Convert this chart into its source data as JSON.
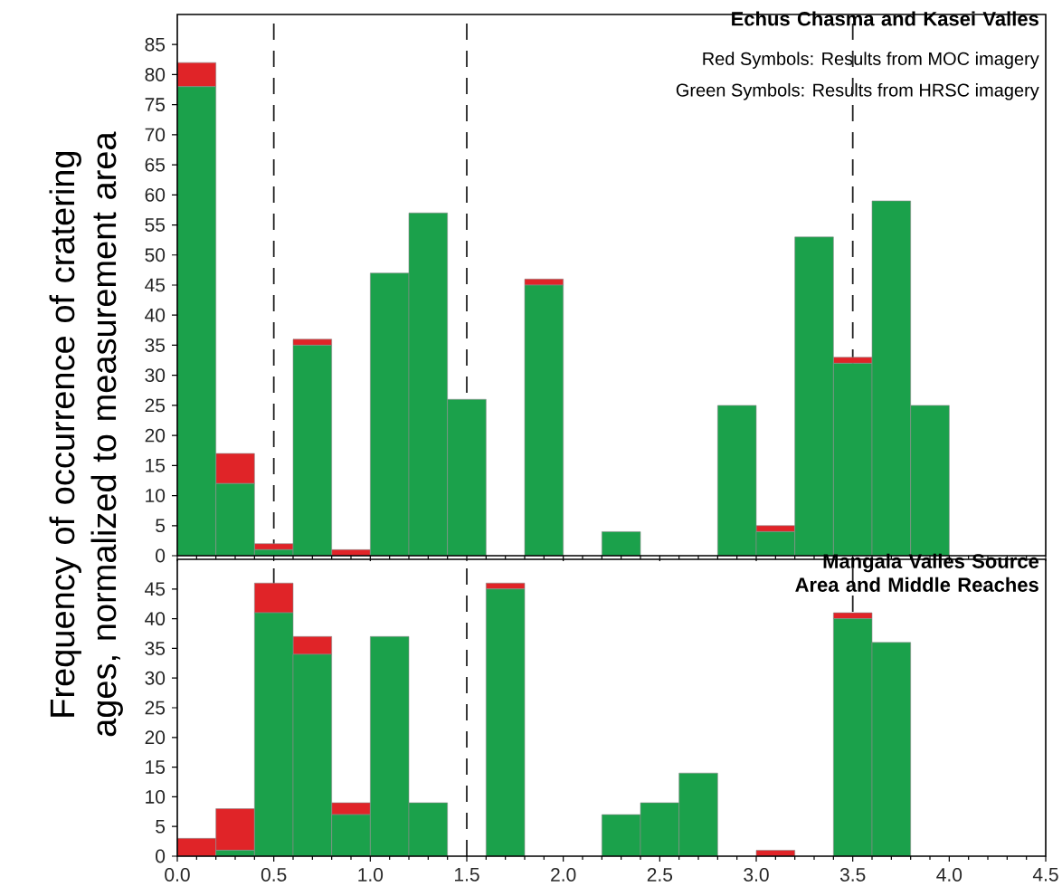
{
  "chart_data": [
    {
      "type": "bar",
      "title": "Echus Chasma and Kasei Valles",
      "ylabel": "Frequency of occurrence of cratering ages, normalized to measurement area",
      "annotations": [
        "Red Symbols: Results from MOC imagery",
        "Green Symbols: Results from HRSC imagery"
      ],
      "x": [
        0.1,
        0.3,
        0.5,
        0.7,
        0.9,
        1.1,
        1.3,
        1.5,
        1.7,
        1.9,
        2.1,
        2.3,
        2.5,
        2.7,
        2.9,
        3.1,
        3.3,
        3.5,
        3.7,
        3.9
      ],
      "stacked": true,
      "series": [
        {
          "color": "#1ba14b",
          "values": [
            78,
            12,
            1,
            35,
            0,
            47,
            57,
            26,
            0,
            45,
            0,
            4,
            0,
            0,
            25,
            4,
            53,
            32,
            59,
            25
          ]
        },
        {
          "color": "#e02428",
          "values": [
            4,
            5,
            1,
            1,
            1,
            0,
            0,
            0,
            0,
            1,
            0,
            0,
            0,
            0,
            0,
            1,
            0,
            1,
            0,
            0
          ]
        }
      ],
      "xlim": [
        0,
        4.5
      ],
      "ylim": [
        0,
        90
      ],
      "xticks": [
        {
          "value": 0,
          "label": null
        },
        {
          "value": 0.5,
          "label": null
        },
        {
          "value": 1,
          "label": null
        },
        {
          "value": 1.5,
          "label": null
        },
        {
          "value": 2,
          "label": null
        },
        {
          "value": 2.5,
          "label": null
        },
        {
          "value": 3,
          "label": null
        },
        {
          "value": 3.5,
          "label": null
        },
        {
          "value": 4,
          "label": null
        },
        {
          "value": 4.5,
          "label": null
        }
      ],
      "yticks": [
        0,
        5,
        10,
        15,
        20,
        25,
        30,
        35,
        40,
        45,
        50,
        55,
        60,
        65,
        70,
        75,
        80,
        85
      ],
      "tick_labels": "y",
      "grid": false,
      "ref_lines": [
        {
          "axis": "x",
          "value": 0.5,
          "color": "#222222",
          "line_style": "dashed"
        },
        {
          "axis": "x",
          "value": 1.5,
          "color": "#222222",
          "line_style": "dashed"
        },
        {
          "axis": "x",
          "value": 3.5,
          "color": "#222222",
          "line_style": "dashed"
        }
      ]
    },
    {
      "type": "bar",
      "title": "Mangala Valles Source Area and Middle Reaches",
      "x": [
        0.1,
        0.3,
        0.5,
        0.7,
        0.9,
        1.1,
        1.3,
        1.5,
        1.7,
        1.9,
        2.1,
        2.3,
        2.5,
        2.7,
        2.9,
        3.1,
        3.3,
        3.5,
        3.7,
        3.9
      ],
      "stacked": true,
      "series": [
        {
          "color": "#1ba14b",
          "values": [
            0,
            1,
            41,
            34,
            7,
            37,
            9,
            0,
            45,
            0,
            0,
            7,
            9,
            14,
            0,
            0,
            0,
            40,
            36,
            0
          ]
        },
        {
          "color": "#e02428",
          "values": [
            3,
            7,
            5,
            3,
            2,
            0,
            0,
            0,
            1,
            0,
            0,
            0,
            0,
            0,
            0,
            1,
            0,
            1,
            0,
            0
          ]
        }
      ],
      "xlim": [
        0,
        4.5
      ],
      "ylim": [
        0,
        50
      ],
      "xticks": [
        {
          "value": 0,
          "label": "0.0"
        },
        {
          "value": 0.5,
          "label": "0.5"
        },
        {
          "value": 1,
          "label": "1.0"
        },
        {
          "value": 1.5,
          "label": "1.5"
        },
        {
          "value": 2,
          "label": "2.0"
        },
        {
          "value": 2.5,
          "label": "2.5"
        },
        {
          "value": 3,
          "label": "3.0"
        },
        {
          "value": 3.5,
          "label": "3.5"
        },
        {
          "value": 4,
          "label": "4.0"
        },
        {
          "value": 4.5,
          "label": "4.5"
        }
      ],
      "yticks": [
        0,
        5,
        10,
        15,
        20,
        25,
        30,
        35,
        40,
        45
      ],
      "grid": false,
      "ref_lines": [
        {
          "axis": "x",
          "value": 0.5,
          "color": "#222222",
          "line_style": "dashed"
        },
        {
          "axis": "x",
          "value": 1.5,
          "color": "#222222",
          "line_style": "dashed"
        },
        {
          "axis": "x",
          "value": 3.5,
          "color": "#222222",
          "line_style": "dashed"
        }
      ]
    }
  ]
}
